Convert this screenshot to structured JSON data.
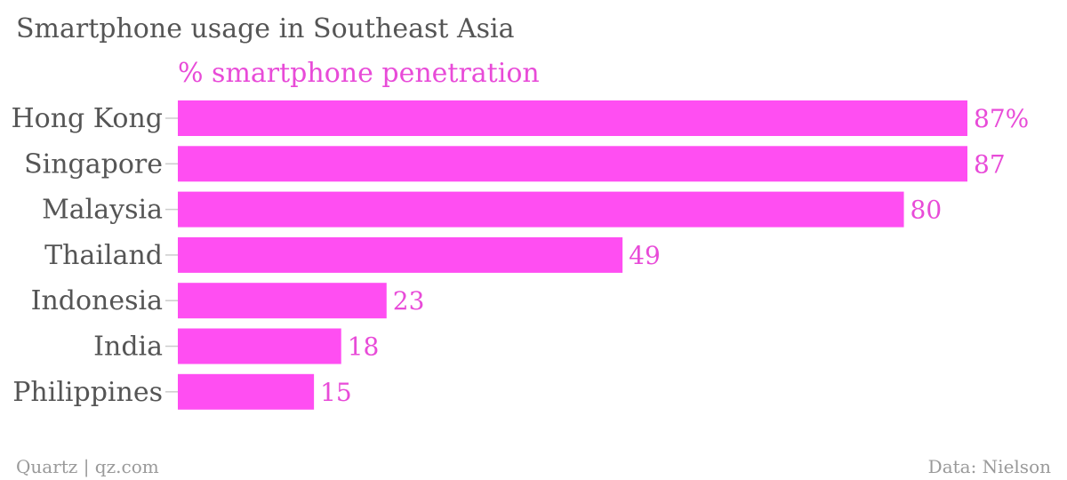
{
  "chart_data": {
    "type": "bar",
    "orientation": "horizontal",
    "title": "Smartphone usage in Southeast Asia",
    "series": [
      {
        "name": "% smartphone penetration",
        "values": [
          87,
          87,
          80,
          49,
          23,
          18,
          15
        ],
        "value_labels": [
          "87%",
          "87",
          "80",
          "49",
          "23",
          "18",
          "15"
        ],
        "color": "#ff4ef2"
      }
    ],
    "categories": [
      "Hong Kong",
      "Singapore",
      "Malaysia",
      "Thailand",
      "Indonesia",
      "India",
      "Philippines"
    ],
    "xlim": [
      0,
      87
    ],
    "grid": false
  },
  "footer": {
    "credit": "Quartz | qz.com",
    "source": "Data: Nielson"
  },
  "colors": {
    "bar": "#ff4ef2",
    "label_accent": "#e84bd8",
    "text": "#555555",
    "muted": "#9a9a9a",
    "tick": "#cccccc"
  }
}
